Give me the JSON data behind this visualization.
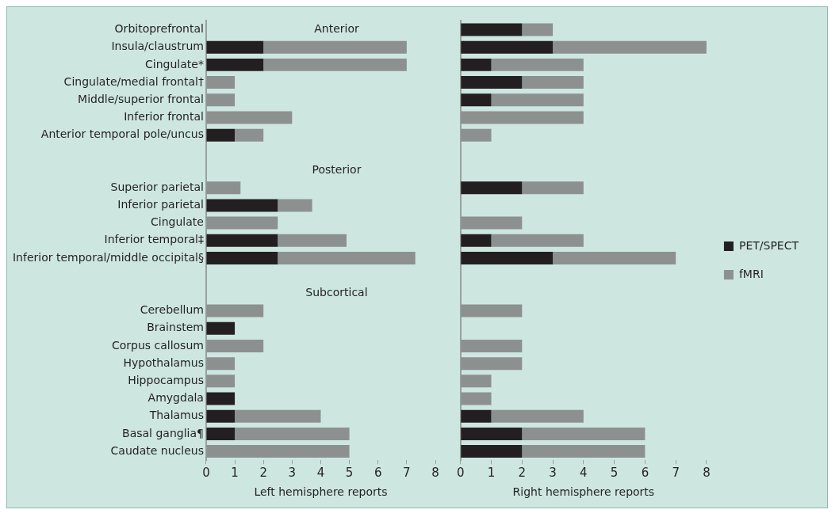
{
  "chart_data": [
    {
      "type": "bar",
      "orientation": "horizontal",
      "stacked": true,
      "categories": [
        "Orbitoprefrontal",
        "Insula/claustrum",
        "Cingulate*",
        "Cingulate/medial frontal†",
        "Middle/superior frontal",
        "Inferior frontal",
        "Anterior temporal pole/uncus",
        null,
        null,
        "Superior parietal",
        "Inferior parietal",
        "Cingulate",
        "Inferior temporal‡",
        "Inferior temporal/middle occipital§",
        null,
        null,
        "Cerebellum",
        "Brainstem",
        "Corpus callosum",
        "Hypothalamus",
        "Hippocampus",
        "Amygdala",
        "Thalamus",
        "Basal ganglia¶",
        "Caudate nucleus"
      ],
      "series": [
        {
          "color": "#231f20",
          "values": [
            0,
            2,
            2,
            0,
            0,
            0,
            1,
            null,
            null,
            0,
            2.5,
            0,
            2.5,
            2.5,
            null,
            null,
            0,
            1,
            0,
            0,
            0,
            1,
            1,
            1,
            0
          ]
        },
        {
          "color": "#8c9190",
          "values": [
            0,
            5,
            5,
            1,
            1,
            3,
            1,
            null,
            null,
            1.2,
            1.2,
            2.5,
            2.4,
            4.8,
            null,
            null,
            2,
            0,
            2,
            1,
            1,
            0,
            3,
            4,
            5
          ]
        }
      ],
      "xlim": [
        0,
        8
      ],
      "xticks": [
        0,
        1,
        2,
        3,
        4,
        5,
        6,
        7,
        8
      ],
      "xlabel": "Left hemisphere reports",
      "grid": false,
      "legend": false,
      "annotations": [
        "Anterior",
        "Posterior",
        "Subcortical"
      ]
    },
    {
      "type": "bar",
      "orientation": "horizontal",
      "stacked": true,
      "categories": [
        null,
        null,
        null,
        null,
        null,
        null,
        null,
        null,
        null,
        null,
        null,
        null,
        null,
        null,
        null,
        null,
        null,
        null,
        null,
        null,
        null,
        null,
        null,
        null,
        null
      ],
      "series": [
        {
          "name": "PET/SPECT",
          "color": "#231f20",
          "values": [
            2,
            3,
            1,
            2,
            1,
            0,
            0,
            null,
            null,
            2,
            0,
            0,
            1,
            3,
            null,
            null,
            0,
            0,
            0,
            0,
            0,
            0,
            1,
            2,
            2
          ]
        },
        {
          "name": "fMRI",
          "color": "#8c9190",
          "values": [
            1,
            5,
            3,
            2,
            3,
            4,
            1,
            null,
            null,
            2,
            0,
            2,
            3,
            4,
            null,
            null,
            2,
            0,
            2,
            2,
            1,
            1,
            3,
            4,
            4
          ]
        }
      ],
      "xlim": [
        0,
        8
      ],
      "xticks": [
        0,
        1,
        2,
        3,
        4,
        5,
        6,
        7,
        8
      ],
      "xlabel": "Right hemisphere reports",
      "grid": false,
      "legend": "right"
    }
  ]
}
